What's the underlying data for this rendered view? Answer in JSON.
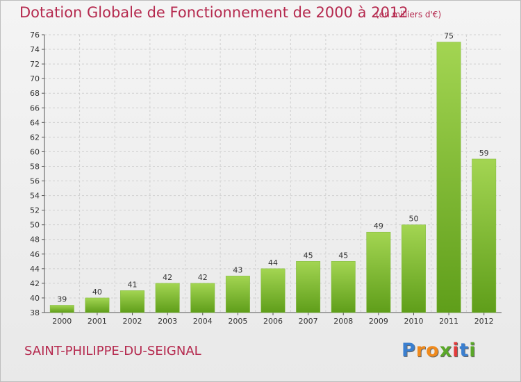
{
  "header": {
    "title": "Dotation Globale de Fonctionnement de 2000 à 2012",
    "subtitle": "(en milliers d'€)"
  },
  "footer": {
    "commune": "SAINT-PHILIPPE-DU-SEIGNAL",
    "logo_letters": [
      {
        "char": "P",
        "color": "#3a7fd0"
      },
      {
        "char": "r",
        "color": "#f08a1c"
      },
      {
        "char": "o",
        "color": "#f08a1c"
      },
      {
        "char": "x",
        "color": "#5aa829"
      },
      {
        "char": "i",
        "color": "#e23b3b"
      },
      {
        "char": "t",
        "color": "#3a7fd0"
      },
      {
        "char": "i",
        "color": "#5aa829"
      }
    ]
  },
  "colors": {
    "accent": "#b5294e",
    "bar_light": "#a3d552",
    "bar_dark": "#5f9e1a"
  },
  "chart_data": {
    "type": "bar",
    "title": "Dotation Globale de Fonctionnement de 2000 à 2012",
    "subtitle": "(en milliers d'€)",
    "categories": [
      "2000",
      "2001",
      "2002",
      "2003",
      "2004",
      "2005",
      "2006",
      "2007",
      "2008",
      "2009",
      "2010",
      "2011",
      "2012"
    ],
    "values": [
      39,
      40,
      41,
      42,
      42,
      43,
      44,
      45,
      45,
      49,
      50,
      75,
      59
    ],
    "data_labels": [
      "39",
      "40",
      "41",
      "42",
      "42",
      "43",
      "44",
      "45",
      "45",
      "49",
      "50",
      "75",
      "59"
    ],
    "ylim": [
      38,
      76
    ],
    "yticks": [
      "38",
      "40",
      "42",
      "44",
      "46",
      "48",
      "50",
      "52",
      "54",
      "56",
      "58",
      "60",
      "62",
      "64",
      "66",
      "68",
      "70",
      "72",
      "74",
      "76"
    ],
    "grid": true,
    "xlabel": "",
    "ylabel": ""
  }
}
